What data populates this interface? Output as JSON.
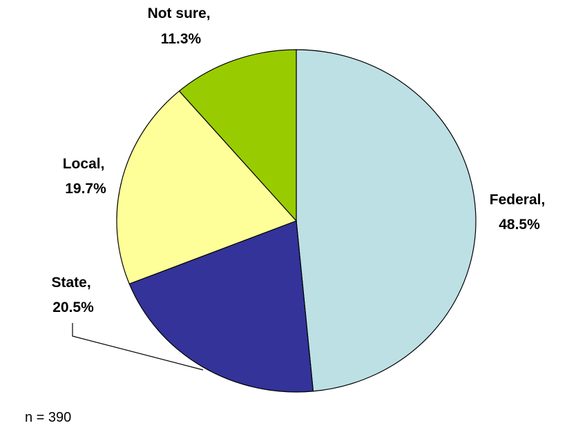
{
  "chart_data": {
    "type": "pie",
    "slices": [
      {
        "name": "Federal",
        "value": 48.5,
        "line1": "Federal,",
        "line2": "48.5%",
        "color": "#bce0e4"
      },
      {
        "name": "State",
        "value": 20.5,
        "line1": "State,",
        "line2": "20.5%",
        "color": "#333399"
      },
      {
        "name": "Local",
        "value": 19.7,
        "line1": "Local,",
        "line2": "19.7%",
        "color": "#ffff99"
      },
      {
        "name": "Not sure",
        "value": 11.3,
        "line1": "Not sure,",
        "line2": "11.3%",
        "color": "#99cc00"
      }
    ]
  },
  "footnote": "n = 390"
}
